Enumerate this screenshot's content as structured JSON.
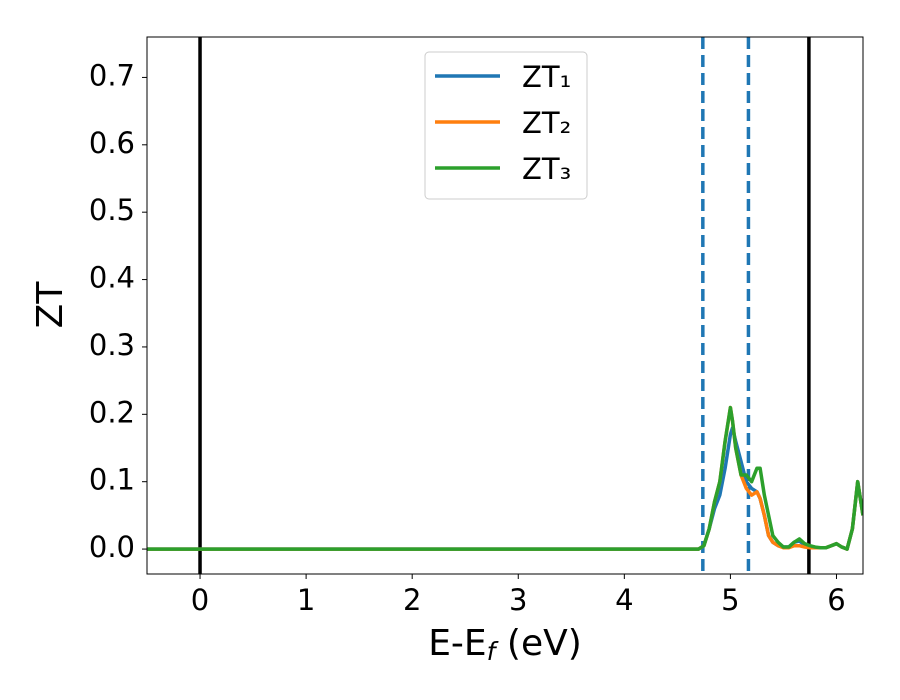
{
  "chart_data": {
    "type": "line",
    "xlabel": [
      "E-E",
      "f",
      " (eV)"
    ],
    "ylabel": "ZT",
    "x": [
      -0.5,
      4.7,
      4.75,
      4.8,
      4.85,
      4.9,
      4.95,
      5.0,
      5.02,
      5.05,
      5.1,
      5.15,
      5.2,
      5.25,
      5.28,
      5.32,
      5.36,
      5.4,
      5.45,
      5.5,
      5.55,
      5.6,
      5.65,
      5.7,
      5.75,
      5.8,
      5.85,
      5.9,
      5.95,
      6.0,
      6.05,
      6.1,
      6.15,
      6.2,
      6.25
    ],
    "series": [
      {
        "name": "ZT₁",
        "color": "#1f77b4",
        "values": [
          0,
          0,
          0.005,
          0.03,
          0.06,
          0.08,
          0.12,
          0.17,
          0.18,
          0.16,
          0.13,
          0.1,
          0.09,
          0.085,
          0.075,
          0.05,
          0.02,
          0.01,
          0.005,
          0.003,
          0.003,
          0.01,
          0.012,
          0.006,
          0.003,
          0.002,
          0.002,
          0.002,
          0.005,
          0.008,
          0.003,
          0,
          0.03,
          0.1,
          0.05
        ]
      },
      {
        "name": "ZT₂",
        "color": "#ff7f0e",
        "values": [
          0,
          0,
          0.005,
          0.03,
          0.07,
          0.1,
          0.16,
          0.21,
          0.19,
          0.15,
          0.11,
          0.09,
          0.08,
          0.085,
          0.075,
          0.05,
          0.02,
          0.01,
          0.005,
          0.002,
          0.002,
          0.005,
          0.005,
          0.003,
          0.002,
          0.002,
          0.002,
          0.002,
          0.005,
          0.008,
          0.003,
          0,
          0.03,
          0.1,
          0.05
        ]
      },
      {
        "name": "ZT₃",
        "color": "#2ca02c",
        "values": [
          0,
          0,
          0.005,
          0.03,
          0.07,
          0.1,
          0.16,
          0.21,
          0.19,
          0.15,
          0.11,
          0.11,
          0.1,
          0.12,
          0.12,
          0.08,
          0.05,
          0.02,
          0.01,
          0.003,
          0.003,
          0.01,
          0.015,
          0.008,
          0.005,
          0.003,
          0.002,
          0.002,
          0.005,
          0.008,
          0.003,
          0,
          0.03,
          0.1,
          0.05
        ]
      }
    ],
    "vlines_solid": [
      0,
      5.74
    ],
    "vlines_dashed": [
      4.74,
      5.17
    ],
    "vline_solid_color": "#000000",
    "vline_dashed_color": "#1f77b4",
    "xlim": [
      -0.5,
      6.25
    ],
    "ylim": [
      -0.037,
      0.76
    ],
    "xticks": [
      0,
      1,
      2,
      3,
      4,
      5,
      6
    ],
    "yticks": [
      {
        "value": 0,
        "label": "0.0"
      },
      0.1,
      0.2,
      0.3,
      0.4,
      0.5,
      0.6,
      0.7
    ],
    "legend": "upper center"
  }
}
